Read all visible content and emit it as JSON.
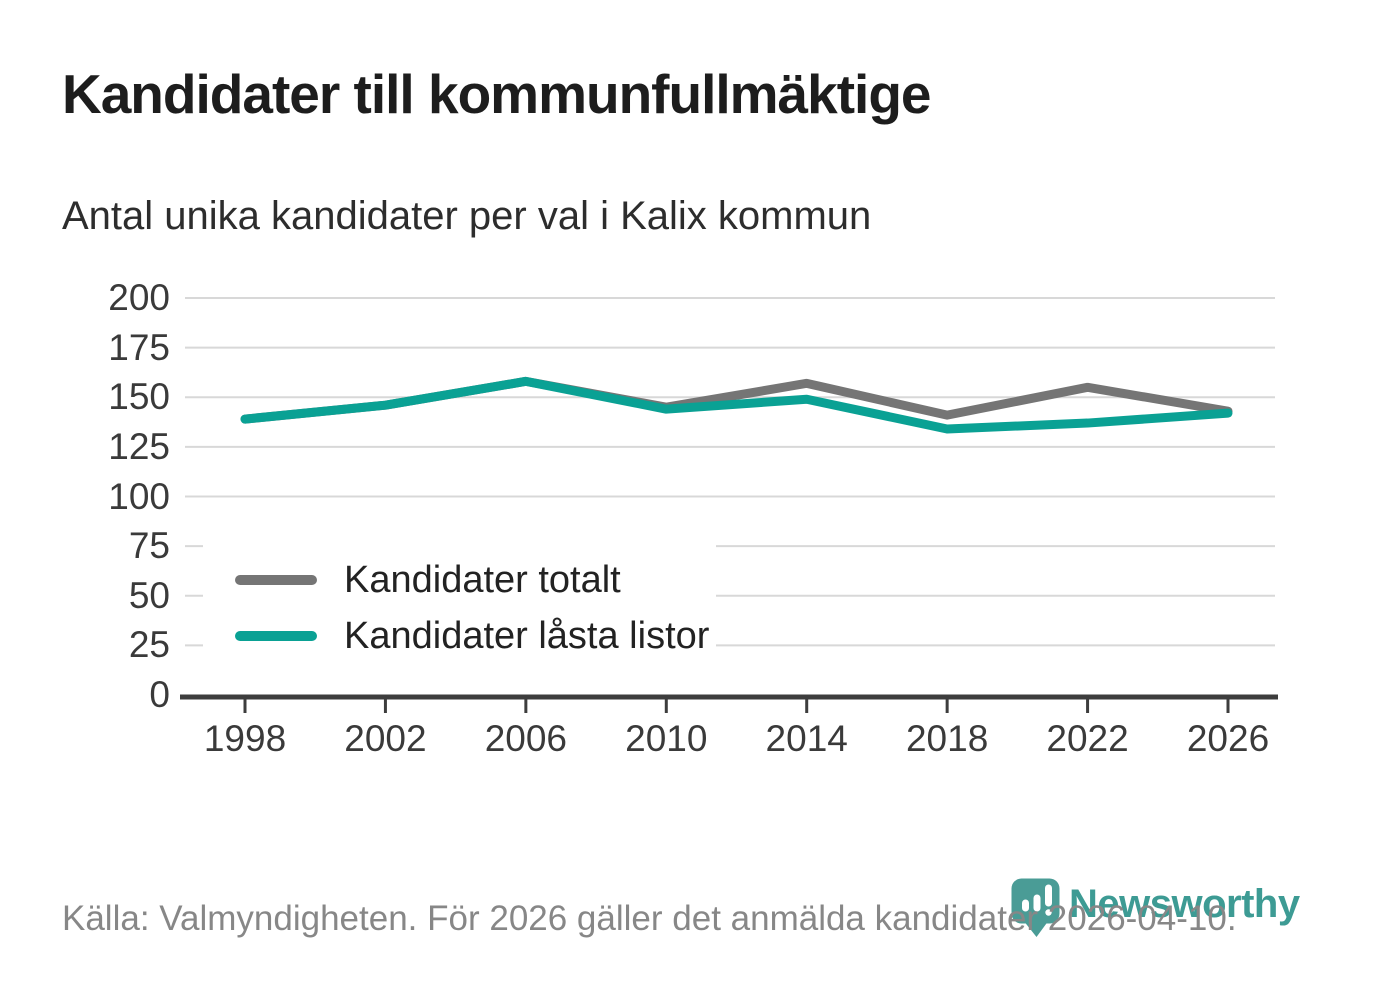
{
  "chart_data": {
    "type": "line",
    "title": "Kandidater till kommunfullmäktige",
    "subtitle": "Antal unika kandidater per val i Kalix kommun",
    "x": [
      1998,
      2002,
      2006,
      2010,
      2014,
      2018,
      2022,
      2026
    ],
    "series": [
      {
        "name": "Kandidater totalt",
        "color": "#757575",
        "values": [
          139,
          146,
          158,
          145,
          157,
          141,
          155,
          143
        ]
      },
      {
        "name": "Kandidater låsta listor",
        "color": "#0aa194",
        "values": [
          139,
          146,
          158,
          144,
          149,
          134,
          137,
          142
        ]
      }
    ],
    "ylim": [
      0,
      200
    ],
    "ytick_step": 25,
    "yticks": [
      0,
      25,
      50,
      75,
      100,
      125,
      150,
      175,
      200
    ],
    "grid": "horizontal",
    "legend_position": "inside-left"
  },
  "footer": {
    "source": "Källa: Valmyndigheten. För 2026 gäller det anmälda kandidater 2026-04-10."
  },
  "branding": {
    "name": "Newsworthy",
    "wordmark_color": "#3d9b94",
    "pin_color": "#4a9c96"
  },
  "colors": {
    "background": "#ffffff",
    "title": "#1d1d1d",
    "subtitle": "#2d2d2d",
    "grid": "#d8d8d8",
    "axis": "#3d3d3d",
    "tick_label": "#3a3a3a",
    "legend_label": "#222222",
    "source_text": "#878787"
  }
}
